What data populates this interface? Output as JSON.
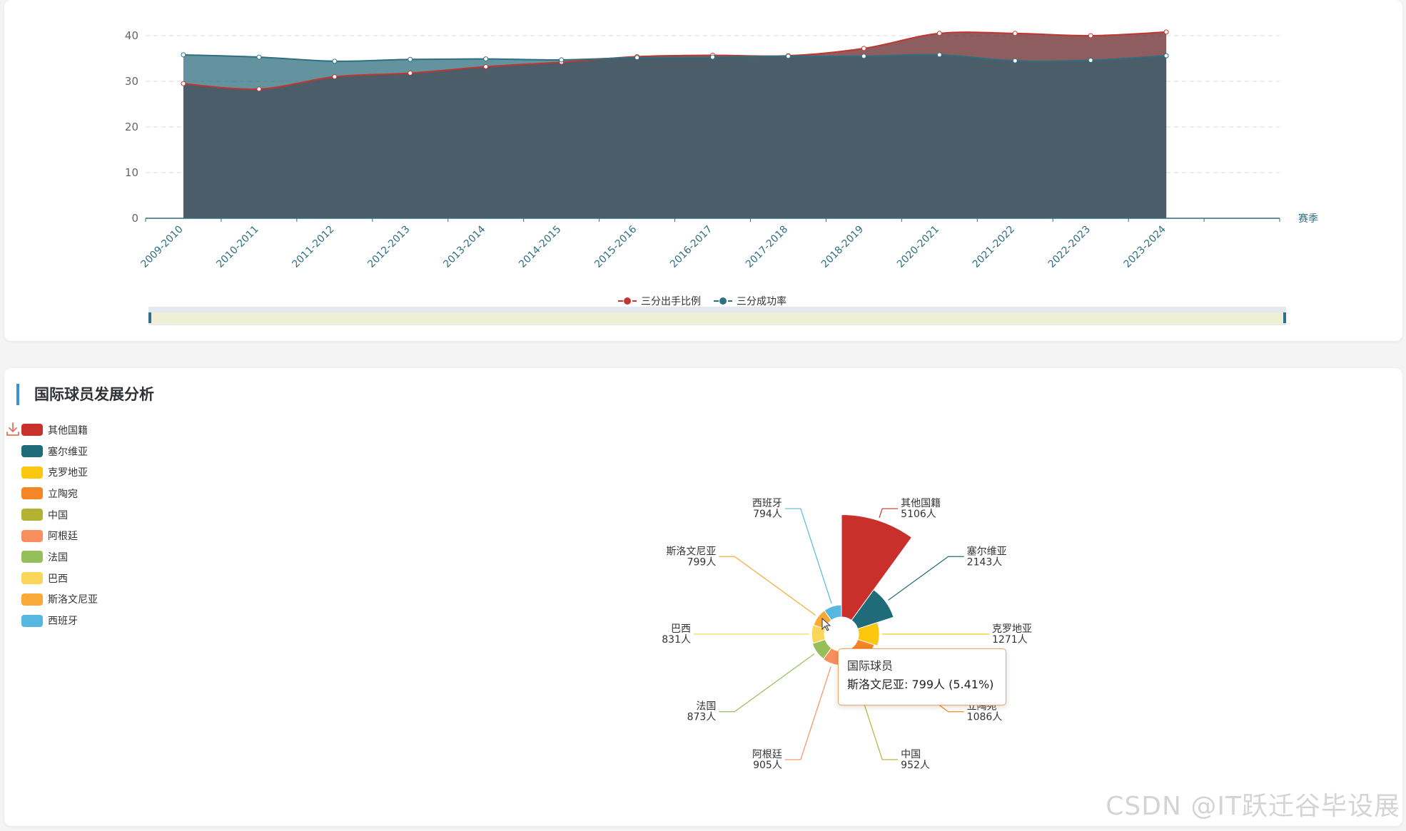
{
  "line_chart": {
    "x_axis_name": "赛季",
    "chart_data": {
      "type": "area",
      "categories": [
        "2009-2010",
        "2010-2011",
        "2011-2012",
        "2012-2013",
        "2013-2014",
        "2014-2015",
        "2015-2016",
        "2016-2017",
        "2017-2018",
        "2018-2019",
        "2020-2021",
        "2021-2022",
        "2022-2023",
        "2023-2024"
      ],
      "series": [
        {
          "name": "三分出手比例",
          "color": "#c23531",
          "values": [
            29.5,
            28.3,
            31.0,
            31.8,
            33.2,
            34.2,
            35.4,
            35.7,
            35.6,
            37.2,
            40.5,
            40.5,
            40.0,
            40.8
          ]
        },
        {
          "name": "三分成功率",
          "color": "#2f6f7f",
          "values": [
            35.8,
            35.3,
            34.4,
            34.8,
            34.9,
            34.7,
            35.2,
            35.3,
            35.5,
            35.5,
            35.8,
            34.5,
            34.6,
            35.6
          ]
        }
      ],
      "ylim": [
        0,
        40
      ],
      "yticks": [
        0,
        10,
        20,
        30,
        40
      ],
      "grid": "y-dashed",
      "legend": "bottom-center"
    }
  },
  "pie_section": {
    "title": "国际球员发展分析",
    "tooltip": {
      "title": "国际球员",
      "body": "斯洛文尼亚: 799人 (5.41%)"
    },
    "chart_data": {
      "type": "pie",
      "subtype": "rose",
      "unit": "人",
      "legend": "top-left-vertical",
      "slices": [
        {
          "name": "其他国籍",
          "value": 5106,
          "color": "#c9302c"
        },
        {
          "name": "塞尔维亚",
          "value": 2143,
          "color": "#1f6b7a"
        },
        {
          "name": "克罗地亚",
          "value": 1271,
          "color": "#fcc70c"
        },
        {
          "name": "立陶宛",
          "value": 1086,
          "color": "#f58525"
        },
        {
          "name": "中国",
          "value": 952,
          "color": "#b3b232"
        },
        {
          "name": "阿根廷",
          "value": 905,
          "color": "#f98f5f"
        },
        {
          "name": "法国",
          "value": 873,
          "color": "#96bf5a"
        },
        {
          "name": "巴西",
          "value": 831,
          "color": "#fbd557"
        },
        {
          "name": "斯洛文尼亚",
          "value": 799,
          "color": "#f9a936"
        },
        {
          "name": "西班牙",
          "value": 794,
          "color": "#56b7e0"
        }
      ]
    }
  },
  "watermark": "CSDN @IT跃迁谷毕设展"
}
